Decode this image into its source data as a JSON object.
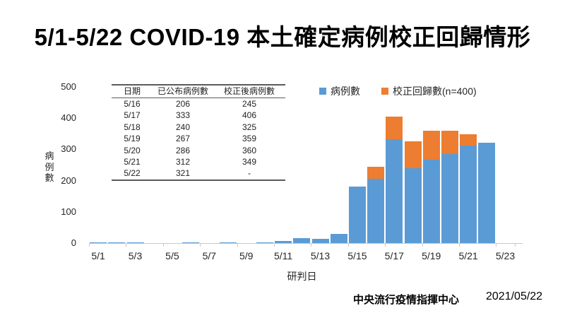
{
  "title": "5/1-5/22 COVID-19 本土確定病例校正回歸情形",
  "table": {
    "headers": [
      "日期",
      "已公布病例數",
      "校正後病例數"
    ],
    "rows": [
      [
        "5/16",
        "206",
        "245"
      ],
      [
        "5/17",
        "333",
        "406"
      ],
      [
        "5/18",
        "240",
        "325"
      ],
      [
        "5/19",
        "267",
        "359"
      ],
      [
        "5/20",
        "286",
        "360"
      ],
      [
        "5/21",
        "312",
        "349"
      ],
      [
        "5/22",
        "321",
        "-"
      ]
    ]
  },
  "legend": [
    {
      "label": "病例數",
      "color": "#5B9BD5"
    },
    {
      "label": "校正回歸數(n=400)",
      "color": "#ED7D31"
    }
  ],
  "footer": {
    "org": "中央流行疫情指揮中心",
    "date": "2021/05/22"
  },
  "colors": {
    "bar_blue": "#5B9BD5",
    "bar_orange": "#ED7D31",
    "axis_line": "#C9C9C9",
    "text": "#262626"
  },
  "chart_data": {
    "type": "bar",
    "stacked": true,
    "title": "",
    "xlabel": "研判日",
    "ylabel": "病例數",
    "ylim": [
      0,
      500
    ],
    "yticks": [
      0,
      100,
      200,
      300,
      400,
      500
    ],
    "grid": false,
    "legend_position": "top-right",
    "categories": [
      "5/1",
      "5/2",
      "5/3",
      "5/4",
      "5/5",
      "5/6",
      "5/7",
      "5/8",
      "5/9",
      "5/10",
      "5/11",
      "5/12",
      "5/13",
      "5/14",
      "5/15",
      "5/16",
      "5/17",
      "5/18",
      "5/19",
      "5/20",
      "5/21",
      "5/22"
    ],
    "x_tick_labels": [
      "5/1",
      "5/3",
      "5/5",
      "5/7",
      "5/9",
      "5/11",
      "5/13",
      "5/15",
      "5/17",
      "5/19",
      "5/21",
      "5/23"
    ],
    "series": [
      {
        "name": "病例數",
        "color": "#5B9BD5",
        "values": [
          3,
          3,
          3,
          0,
          0,
          3,
          0,
          3,
          0,
          3,
          7,
          16,
          13,
          29,
          180,
          206,
          333,
          240,
          267,
          286,
          312,
          321
        ]
      },
      {
        "name": "校正回歸數(n=400)",
        "color": "#ED7D31",
        "values": [
          0,
          0,
          0,
          0,
          0,
          0,
          0,
          0,
          0,
          0,
          0,
          0,
          0,
          0,
          0,
          39,
          73,
          85,
          92,
          74,
          37,
          0
        ]
      }
    ],
    "corrected_totals": {
      "5/16": 245,
      "5/17": 406,
      "5/18": 325,
      "5/19": 359,
      "5/20": 360,
      "5/21": 349
    }
  }
}
